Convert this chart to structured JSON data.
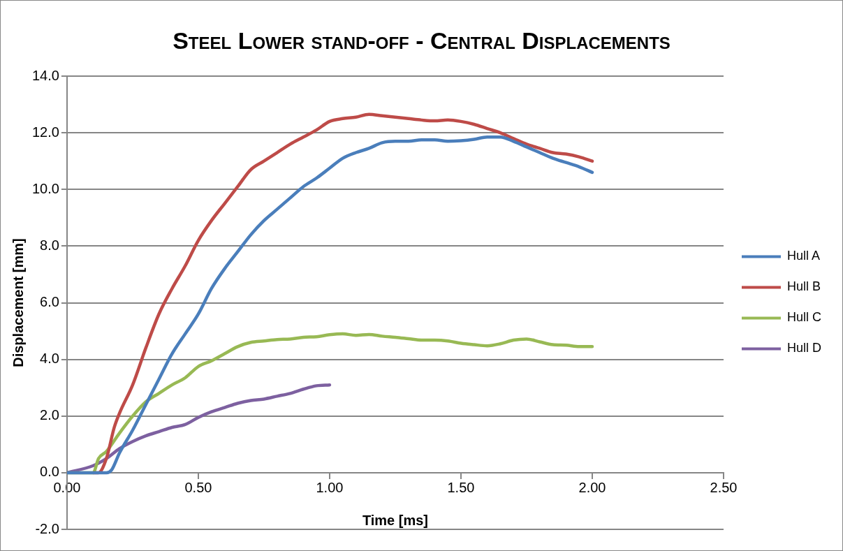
{
  "chart_data": {
    "type": "line",
    "title": "Steel Lower stand-off - Central Displacements",
    "xlabel": "Time [ms]",
    "ylabel": "Displacement [mm]",
    "xlim": [
      0,
      2.5
    ],
    "xticks": [
      {
        "value": 0,
        "label": "0.00"
      },
      {
        "value": 0.5,
        "label": "0.50"
      },
      {
        "value": 1,
        "label": "1.00"
      },
      {
        "value": 1.5,
        "label": "1.50"
      },
      {
        "value": 2,
        "label": "2.00"
      },
      {
        "value": 2.5,
        "label": "2.50"
      }
    ],
    "ylim": [
      -2,
      14
    ],
    "yticks": [
      {
        "value": -2,
        "label": "-2.0"
      },
      {
        "value": 0,
        "label": "0.0"
      },
      {
        "value": 2,
        "label": "2.0"
      },
      {
        "value": 4,
        "label": "4.0"
      },
      {
        "value": 6,
        "label": "6.0"
      },
      {
        "value": 8,
        "label": "8.0"
      },
      {
        "value": 10,
        "label": "10.0"
      },
      {
        "value": 12,
        "label": "12.0"
      },
      {
        "value": 14,
        "label": "14.0"
      }
    ],
    "grid": "y",
    "legend": "right",
    "marker": "none",
    "line_style": "solid",
    "series": [
      {
        "name": "Hull A",
        "color": "#4a7ebb",
        "x": [
          0,
          0.1,
          0.15,
          0.17,
          0.2,
          0.25,
          0.3,
          0.35,
          0.4,
          0.45,
          0.5,
          0.55,
          0.6,
          0.65,
          0.7,
          0.75,
          0.8,
          0.85,
          0.9,
          0.95,
          1.0,
          1.05,
          1.1,
          1.15,
          1.2,
          1.25,
          1.3,
          1.35,
          1.4,
          1.45,
          1.5,
          1.55,
          1.6,
          1.65,
          1.7,
          1.75,
          1.8,
          1.85,
          1.9,
          1.95,
          2.0
        ],
        "values": [
          0,
          0,
          0,
          0.1,
          0.7,
          1.5,
          2.4,
          3.3,
          4.2,
          4.9,
          5.6,
          6.5,
          7.2,
          7.8,
          8.4,
          8.9,
          9.3,
          9.7,
          10.1,
          10.4,
          10.75,
          11.1,
          11.3,
          11.45,
          11.65,
          11.7,
          11.7,
          11.75,
          11.75,
          11.7,
          11.72,
          11.77,
          11.85,
          11.85,
          11.7,
          11.5,
          11.3,
          11.1,
          10.95,
          10.8,
          10.6
        ]
      },
      {
        "name": "Hull B",
        "color": "#be4b48",
        "x": [
          0.1,
          0.12,
          0.15,
          0.18,
          0.2,
          0.25,
          0.3,
          0.35,
          0.4,
          0.45,
          0.5,
          0.55,
          0.6,
          0.65,
          0.7,
          0.75,
          0.8,
          0.85,
          0.9,
          0.95,
          1.0,
          1.05,
          1.1,
          1.15,
          1.2,
          1.25,
          1.3,
          1.35,
          1.4,
          1.45,
          1.5,
          1.55,
          1.6,
          1.65,
          1.7,
          1.75,
          1.8,
          1.85,
          1.9,
          1.95,
          2.0
        ],
        "values": [
          0,
          0,
          0.5,
          1.6,
          2.1,
          3.1,
          4.4,
          5.6,
          6.5,
          7.3,
          8.2,
          8.9,
          9.5,
          10.1,
          10.7,
          11.0,
          11.3,
          11.6,
          11.85,
          12.1,
          12.4,
          12.5,
          12.55,
          12.65,
          12.6,
          12.55,
          12.5,
          12.45,
          12.42,
          12.45,
          12.4,
          12.3,
          12.15,
          12.0,
          11.8,
          11.6,
          11.45,
          11.3,
          11.25,
          11.15,
          11.0
        ]
      },
      {
        "name": "Hull C",
        "color": "#98b954",
        "x": [
          0,
          0.1,
          0.12,
          0.15,
          0.2,
          0.25,
          0.3,
          0.35,
          0.4,
          0.45,
          0.5,
          0.55,
          0.6,
          0.65,
          0.7,
          0.75,
          0.8,
          0.85,
          0.9,
          0.95,
          1.0,
          1.05,
          1.1,
          1.15,
          1.2,
          1.25,
          1.3,
          1.35,
          1.4,
          1.45,
          1.5,
          1.55,
          1.6,
          1.65,
          1.7,
          1.75,
          1.8,
          1.85,
          1.9,
          1.95,
          2.0
        ],
        "values": [
          0,
          0,
          0.5,
          0.75,
          1.4,
          2.0,
          2.5,
          2.8,
          3.1,
          3.35,
          3.75,
          3.95,
          4.2,
          4.45,
          4.6,
          4.65,
          4.7,
          4.72,
          4.78,
          4.8,
          4.87,
          4.9,
          4.85,
          4.88,
          4.82,
          4.78,
          4.73,
          4.68,
          4.68,
          4.65,
          4.57,
          4.52,
          4.48,
          4.55,
          4.68,
          4.72,
          4.62,
          4.52,
          4.5,
          4.45,
          4.45
        ]
      },
      {
        "name": "Hull D",
        "color": "#7d60a0",
        "x": [
          0,
          0.1,
          0.15,
          0.2,
          0.25,
          0.3,
          0.35,
          0.4,
          0.45,
          0.5,
          0.55,
          0.6,
          0.65,
          0.7,
          0.75,
          0.8,
          0.85,
          0.9,
          0.95,
          1.0
        ],
        "values": [
          0,
          0.25,
          0.5,
          0.85,
          1.1,
          1.3,
          1.45,
          1.6,
          1.7,
          1.95,
          2.15,
          2.3,
          2.45,
          2.55,
          2.6,
          2.7,
          2.8,
          2.95,
          3.07,
          3.1
        ]
      }
    ]
  }
}
